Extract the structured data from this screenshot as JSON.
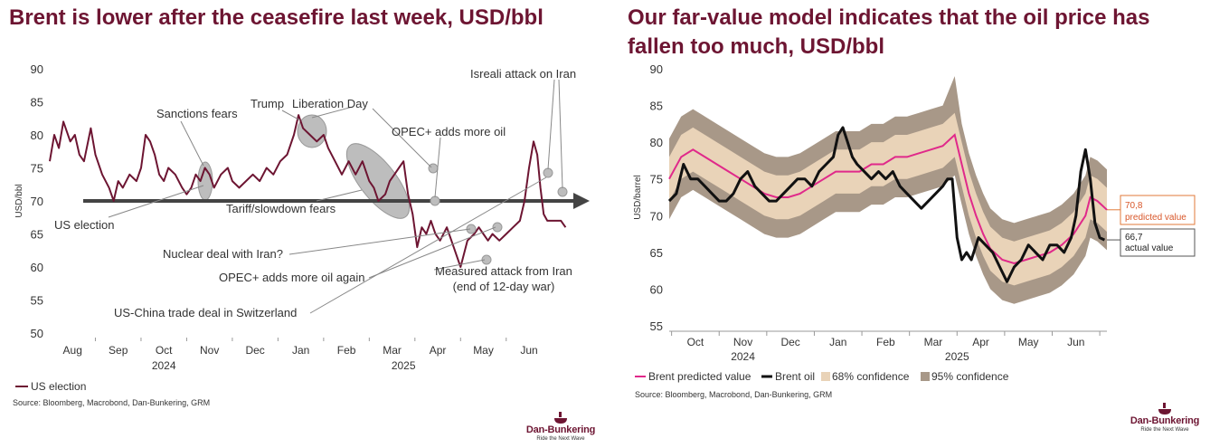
{
  "colors": {
    "brand": "#6d1532",
    "brent": "#6d1532",
    "arrow": "#444444",
    "ellipse": "#bdbdbd",
    "predicted": "#e0298a",
    "actual": "#111111",
    "conf68": "#e9d3b8",
    "conf95": "#a89888",
    "predicted_label_border": "#e07a3a",
    "predicted_label_text": "#d8572a"
  },
  "left": {
    "title": "Brent is lower after the ceasefire last week, USD/bbl",
    "source": "Source: Bloomberg, Macrobond, Dan-Bunkering, GRM",
    "legend_label": "US election",
    "logo": {
      "name": "Dan-Bunkering",
      "tagline": "Ride the Next Wave"
    },
    "chart_data": {
      "type": "line",
      "title": "Brent is lower after the ceasefire last week, USD/bbl",
      "ylabel": "USD/bbl",
      "ylim": [
        50,
        90
      ],
      "yticks": [
        50,
        55,
        60,
        65,
        70,
        75,
        80,
        85,
        90
      ],
      "xlim": [
        0,
        11.55
      ],
      "months": [
        {
          "label": "Aug",
          "pos": 0.5
        },
        {
          "label": "Sep",
          "pos": 1.5
        },
        {
          "label": "Oct",
          "pos": 2.5
        },
        {
          "label": "Nov",
          "pos": 3.5
        },
        {
          "label": "Dec",
          "pos": 4.5
        },
        {
          "label": "Jan",
          "pos": 5.5
        },
        {
          "label": "Feb",
          "pos": 6.5
        },
        {
          "label": "Mar",
          "pos": 7.5
        },
        {
          "label": "Apr",
          "pos": 8.5
        },
        {
          "label": "May",
          "pos": 9.5
        },
        {
          "label": "Jun",
          "pos": 10.5
        }
      ],
      "years": [
        {
          "label": "2024",
          "pos": 2.5
        },
        {
          "label": "2025",
          "pos": 7.75
        }
      ],
      "series": [
        {
          "name": "Brent",
          "x": [
            0,
            0.1,
            0.2,
            0.3,
            0.45,
            0.55,
            0.65,
            0.75,
            0.9,
            1.0,
            1.05,
            1.15,
            1.3,
            1.4,
            1.5,
            1.6,
            1.75,
            1.9,
            2.0,
            2.1,
            2.2,
            2.3,
            2.4,
            2.5,
            2.6,
            2.75,
            2.9,
            3.0,
            3.1,
            3.2,
            3.3,
            3.4,
            3.5,
            3.6,
            3.75,
            3.9,
            4.0,
            4.15,
            4.3,
            4.45,
            4.6,
            4.75,
            4.9,
            5.05,
            5.2,
            5.35,
            5.45,
            5.55,
            5.7,
            5.85,
            6.0,
            6.1,
            6.25,
            6.4,
            6.55,
            6.7,
            6.85,
            7.0,
            7.1,
            7.2,
            7.35,
            7.45,
            7.55,
            7.65,
            7.75,
            7.85,
            7.95,
            8.05,
            8.15,
            8.25,
            8.35,
            8.45,
            8.55,
            8.7,
            8.85,
            9.0,
            9.15,
            9.3,
            9.4,
            9.5,
            9.6,
            9.7,
            9.85,
            10.0,
            10.15,
            10.3,
            10.4,
            10.5,
            10.6,
            10.68,
            10.75,
            10.82,
            10.9,
            11.0,
            11.1,
            11.2,
            11.3
          ],
          "y": [
            76,
            80,
            78,
            82,
            79,
            80,
            77,
            76,
            81,
            77,
            76,
            74,
            72,
            70,
            73,
            72,
            74,
            73,
            75,
            80,
            79,
            77,
            74,
            73,
            75,
            74,
            72,
            71,
            72,
            74,
            73,
            75,
            74,
            72,
            74,
            75,
            73,
            72,
            73,
            74,
            73,
            75,
            74,
            76,
            77,
            80,
            83,
            81,
            80,
            79,
            80,
            78,
            76,
            74,
            76,
            74,
            76,
            73,
            72,
            70,
            71,
            73,
            74,
            75,
            76,
            71,
            68,
            63,
            66,
            65,
            67,
            65,
            64,
            66,
            63,
            60,
            64,
            65,
            66,
            65,
            64,
            65,
            64,
            65,
            66,
            67,
            70,
            75,
            79,
            77,
            72,
            68,
            67,
            67,
            67,
            67,
            66
          ]
        }
      ],
      "annotations": [
        "Sanctions fears",
        "Trump",
        "Liberation Day",
        "Isreali attack on Iran",
        "OPEC+ adds more oil",
        "US election",
        "Tariff/slowdown fears",
        "Nuclear deal with Iran?",
        "OPEC+ adds more oil again",
        "Measured attack from Iran",
        "(end of 12-day war)",
        "US-China trade deal in Switzerland"
      ]
    }
  },
  "right": {
    "title": "Our far-value model indicates that the oil price has fallen too much, USD/bbl",
    "source": "Source: Bloomberg, Macrobond, Dan-Bunkering, GRM",
    "logo": {
      "name": "Dan-Bunkering",
      "tagline": "Ride the Next Wave"
    },
    "predicted_label": {
      "value": "70,8",
      "text": "predicted value"
    },
    "actual_label": {
      "value": "66,7",
      "text": "actual value"
    },
    "legend": [
      "Brent predicted value",
      "Brent oil",
      "68% confidence",
      "95% confidence"
    ],
    "chart_data": {
      "type": "line",
      "title": "Our far-value model indicates that the oil price has fallen too much, USD/bbl",
      "ylabel": "USD/barrel",
      "ylim": [
        55,
        90
      ],
      "yticks": [
        55,
        60,
        65,
        70,
        75,
        80,
        85,
        90
      ],
      "xlim": [
        0,
        9.2
      ],
      "months": [
        {
          "label": "Oct",
          "pos": 0.55
        },
        {
          "label": "Nov",
          "pos": 1.55
        },
        {
          "label": "Dec",
          "pos": 2.55
        },
        {
          "label": "Jan",
          "pos": 3.55
        },
        {
          "label": "Feb",
          "pos": 4.55
        },
        {
          "label": "Mar",
          "pos": 5.55
        },
        {
          "label": "Apr",
          "pos": 6.55
        },
        {
          "label": "May",
          "pos": 7.55
        },
        {
          "label": "Jun",
          "pos": 8.55
        }
      ],
      "years": [
        {
          "label": "2024",
          "pos": 1.55
        },
        {
          "label": "2025",
          "pos": 6.05
        }
      ],
      "x": [
        0,
        0.25,
        0.5,
        0.75,
        1.0,
        1.25,
        1.5,
        1.75,
        2.0,
        2.25,
        2.5,
        2.75,
        3.0,
        3.25,
        3.5,
        3.75,
        4.0,
        4.25,
        4.5,
        4.75,
        5.0,
        5.25,
        5.5,
        5.75,
        6.0,
        6.15,
        6.3,
        6.45,
        6.6,
        6.75,
        7.0,
        7.25,
        7.5,
        7.75,
        8.0,
        8.25,
        8.5,
        8.75,
        8.85,
        9.0,
        9.2
      ],
      "series": [
        {
          "name": "Brent predicted value",
          "y": [
            75,
            78,
            79,
            78,
            77,
            76,
            75,
            74,
            73,
            72.5,
            72.5,
            73,
            74,
            75,
            76,
            76,
            76,
            77,
            77,
            78,
            78,
            78.5,
            79,
            79.5,
            81,
            77,
            73,
            70,
            67.5,
            65.5,
            64,
            63.5,
            64,
            64.5,
            65,
            66,
            67.5,
            70,
            72.5,
            72,
            70.8
          ]
        },
        {
          "name": "Brent oil",
          "x": [
            0,
            0.15,
            0.3,
            0.45,
            0.6,
            0.75,
            0.9,
            1.05,
            1.2,
            1.35,
            1.5,
            1.65,
            1.8,
            1.95,
            2.1,
            2.25,
            2.4,
            2.55,
            2.7,
            2.85,
            3.0,
            3.15,
            3.3,
            3.45,
            3.55,
            3.65,
            3.75,
            3.85,
            3.95,
            4.1,
            4.25,
            4.4,
            4.55,
            4.7,
            4.85,
            5.0,
            5.15,
            5.3,
            5.45,
            5.6,
            5.75,
            5.85,
            5.95,
            6.05,
            6.15,
            6.25,
            6.35,
            6.5,
            6.65,
            6.8,
            6.95,
            7.1,
            7.25,
            7.4,
            7.55,
            7.7,
            7.85,
            8.0,
            8.15,
            8.3,
            8.45,
            8.55,
            8.65,
            8.75,
            8.85,
            8.95,
            9.05,
            9.15
          ],
          "y": [
            72,
            73,
            77,
            75,
            75,
            74,
            73,
            72,
            72,
            73,
            75,
            76,
            74,
            73,
            72,
            72,
            73,
            74,
            75,
            75,
            74,
            76,
            77,
            78,
            81,
            82,
            80,
            78,
            77,
            76,
            75,
            76,
            75,
            76,
            74,
            73,
            72,
            71,
            72,
            73,
            74,
            75,
            75,
            67,
            64,
            65,
            64,
            67,
            66,
            65,
            63,
            61,
            63,
            64,
            66,
            65,
            64,
            66,
            66,
            65,
            67,
            70,
            76,
            79,
            75,
            69,
            67,
            66.7
          ]
        },
        {
          "name": "68% confidence",
          "lower": [
            72,
            75,
            76,
            75,
            74,
            73,
            72,
            71,
            70,
            69.5,
            69.5,
            70,
            71,
            72,
            73,
            73,
            73,
            74,
            74,
            75,
            75,
            75.5,
            76,
            76.5,
            78,
            74,
            70,
            67,
            64.5,
            62.5,
            61,
            60.5,
            61,
            61.5,
            62,
            63,
            64.5,
            67,
            69.5,
            69,
            67.8
          ],
          "upper": [
            78,
            81,
            82,
            81,
            80,
            79,
            78,
            77,
            76,
            75.5,
            75.5,
            76,
            77,
            78,
            79,
            79,
            79,
            80,
            80,
            81,
            81,
            81.5,
            82,
            82.5,
            84,
            80,
            76,
            73,
            70.5,
            68.5,
            67,
            66.5,
            67,
            67.5,
            68,
            69,
            70.5,
            73,
            75.5,
            75,
            73.8
          ]
        },
        {
          "name": "95% confidence",
          "lower": [
            69.5,
            72.5,
            73.5,
            72.5,
            71.5,
            70.5,
            69.5,
            68.5,
            67.5,
            67,
            67,
            67.5,
            68.5,
            69.5,
            70.5,
            70.5,
            70.5,
            71.5,
            71.5,
            72.5,
            72.5,
            73,
            73.5,
            74,
            75.5,
            71.5,
            67.5,
            64.5,
            62,
            60,
            58.5,
            58,
            58.5,
            59,
            59.5,
            60.5,
            62,
            64.5,
            67,
            66.5,
            65.3
          ],
          "upper": [
            80.5,
            83.5,
            84.5,
            83.5,
            82.5,
            81.5,
            80.5,
            79.5,
            78.5,
            78,
            78,
            78.5,
            79.5,
            80.5,
            81.5,
            81.5,
            81.5,
            82.5,
            82.5,
            83.5,
            83.5,
            84,
            84.5,
            85,
            89,
            82.5,
            78.5,
            75.5,
            73,
            71,
            69.5,
            69,
            69.5,
            70,
            70.5,
            71.5,
            73,
            75.5,
            78,
            77.5,
            76.3
          ]
        }
      ]
    }
  }
}
